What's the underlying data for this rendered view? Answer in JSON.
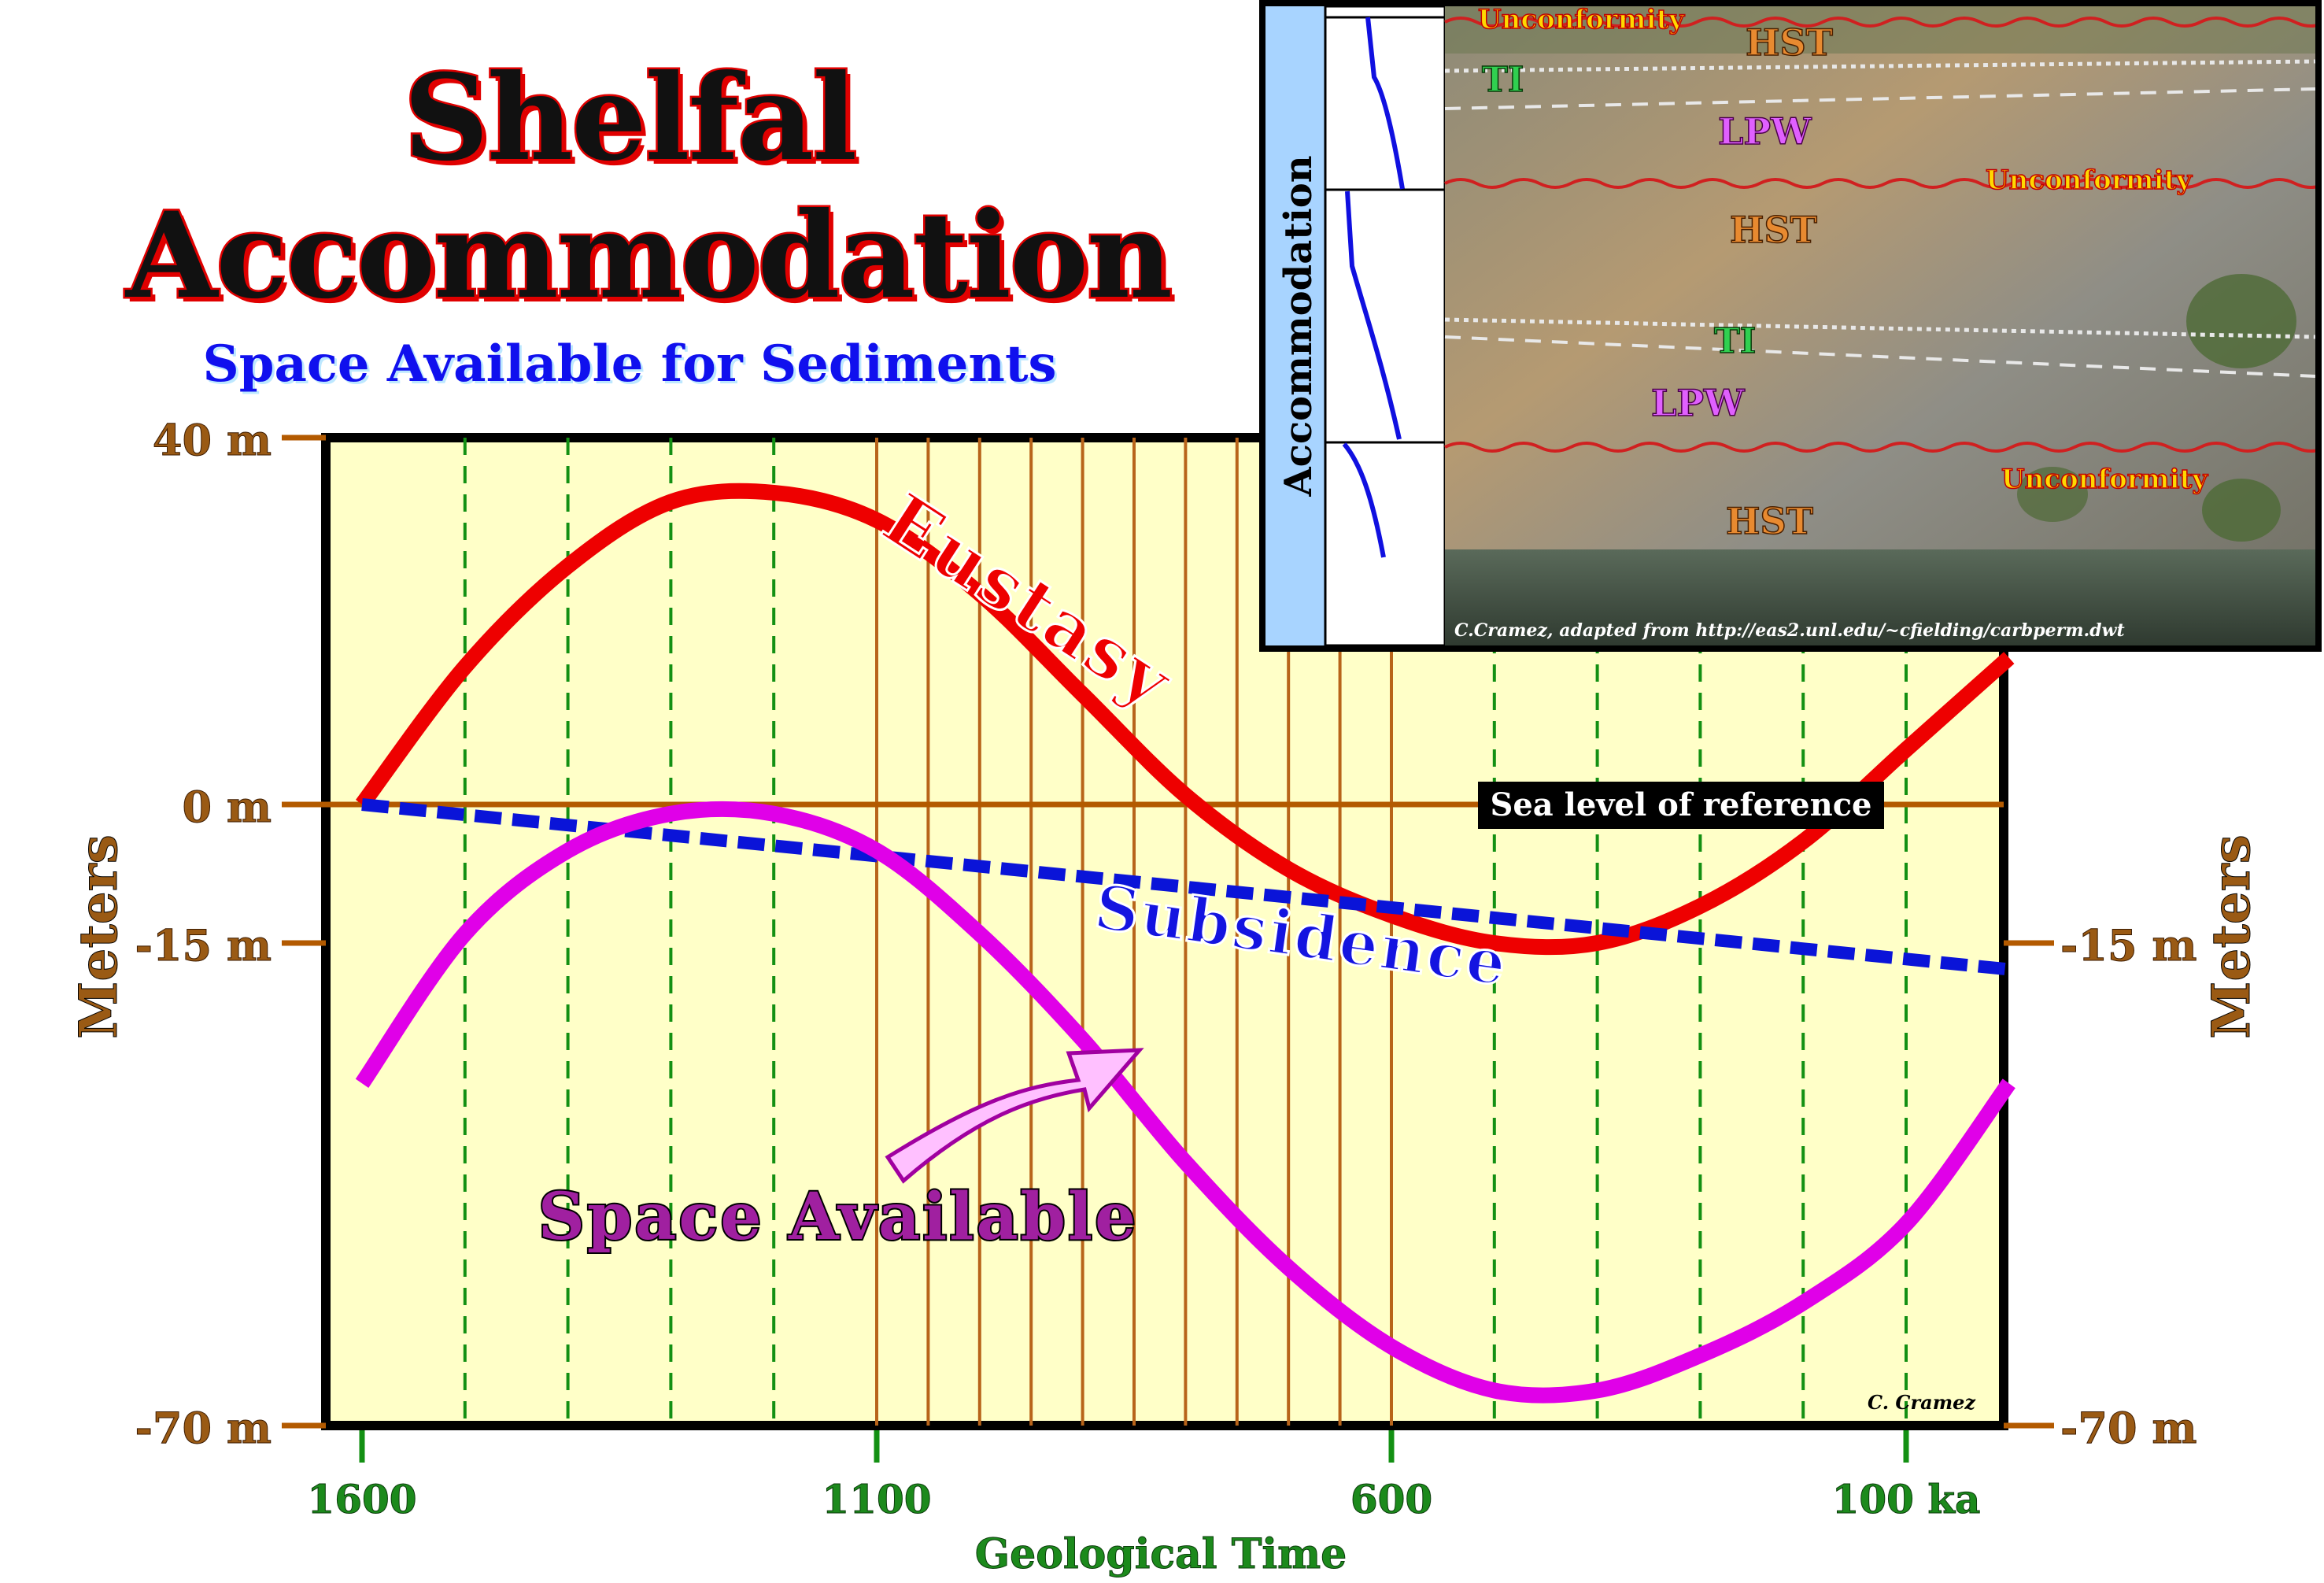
{
  "title_line1": "Shelfal",
  "title_line2": "Accommodation",
  "subtitle": "Space Available for Sediments",
  "chart_data": {
    "type": "line",
    "xlabel": "Geological Time",
    "ylabel_left": "Meters",
    "ylabel_right": "Meters",
    "x_ticks": [
      "1600",
      "1100",
      "600",
      "100 ka"
    ],
    "y_ticks_left": [
      "40 m",
      "0 m",
      "-15 m",
      "-70 m"
    ],
    "y_ticks_right": [
      "-15 m",
      "-70 m"
    ],
    "xlim": [
      1630,
      0
    ],
    "ylim": [
      -70,
      40
    ],
    "reference_label": "Sea level of reference",
    "credit": "C. Cramez",
    "series": [
      {
        "name": "Eustasy",
        "color": "#ee0000",
        "x": [
          1600,
          1500,
          1400,
          1300,
          1200,
          1100,
          1000,
          900,
          800,
          700,
          600,
          500,
          400,
          300,
          200,
          100,
          0
        ],
        "y": [
          0,
          15,
          26,
          33,
          34,
          31,
          23,
          12,
          1,
          -7,
          -12,
          -15,
          -15,
          -11,
          -4,
          6,
          16
        ]
      },
      {
        "name": "Subsidence",
        "color": "#0a14d8",
        "x": [
          1600,
          0
        ],
        "y": [
          0,
          -18
        ]
      },
      {
        "name": "Space Available",
        "color": "#e000e8",
        "x": [
          1600,
          1500,
          1400,
          1300,
          1200,
          1100,
          1000,
          900,
          800,
          700,
          600,
          500,
          400,
          300,
          200,
          100,
          0
        ],
        "y": [
          -31,
          -14,
          -5,
          -1,
          -1,
          -5,
          -14,
          -26,
          -40,
          -52,
          -61,
          -66,
          -66,
          -62,
          -56,
          -47,
          -31
        ]
      }
    ]
  },
  "inset": {
    "axis_label": "Accommodation",
    "labels": [
      "Unconformity",
      "HST",
      "TI",
      "LPW",
      "Unconformity",
      "HST",
      "TI",
      "LPW",
      "Unconformity",
      "HST"
    ],
    "credit": "C.Cramez, adapted from http://eas2.unl.edu/~cfielding/carbperm.dwt"
  }
}
